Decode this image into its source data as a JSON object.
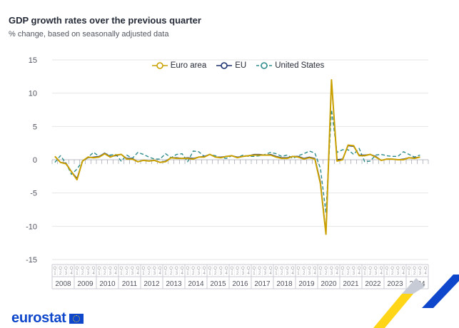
{
  "title": "GDP growth rates over the previous quarter",
  "subtitle": "% change, based on seasonally adjusted data",
  "logo_text": "eurostat",
  "colors": {
    "euro_area": "#c9a000",
    "eu": "#1a2f6e",
    "united_states": "#2e8b8b",
    "grid": "#e6e6e6",
    "brand_blue": "#0e47cb",
    "brand_yellow": "#ffd617"
  },
  "chart_data": {
    "type": "line",
    "title": "GDP growth rates over the previous quarter",
    "subtitle": "% change, based on seasonally adjusted data",
    "ylim": [
      -15,
      15
    ],
    "yticks": [
      15,
      10,
      5,
      0,
      -5,
      -10,
      -15
    ],
    "xlabel": "",
    "ylabel": "",
    "legend_position": "top-center",
    "quarter_labels": [
      "Q1",
      "Q2",
      "Q3",
      "Q4"
    ],
    "years": [
      "2008",
      "2009",
      "2010",
      "2011",
      "2012",
      "2013",
      "2014",
      "2015",
      "2016",
      "2017",
      "2018",
      "2019",
      "2020",
      "2021",
      "2022",
      "2023",
      "2024"
    ],
    "series": [
      {
        "name": "Euro area",
        "style": "solid",
        "values": [
          0.5,
          -0.4,
          -0.6,
          -1.8,
          -3.0,
          -0.2,
          0.4,
          0.3,
          0.4,
          0.9,
          0.4,
          0.7,
          0.8,
          0.1,
          0.1,
          -0.3,
          -0.1,
          -0.2,
          -0.1,
          -0.4,
          -0.3,
          0.3,
          0.2,
          0.2,
          0.2,
          0.1,
          0.4,
          0.4,
          0.8,
          0.4,
          0.3,
          0.5,
          0.6,
          0.3,
          0.5,
          0.6,
          0.7,
          0.7,
          0.7,
          0.7,
          0.4,
          0.2,
          0.2,
          0.5,
          0.4,
          0.1,
          0.3,
          0.1,
          -3.6,
          -11.2,
          12.0,
          -0.2,
          0.0,
          2.2,
          2.1,
          0.6,
          0.6,
          0.8,
          0.4,
          -0.1,
          0.1,
          0.1,
          0.0,
          0.0,
          0.3,
          0.2,
          0.4
        ]
      },
      {
        "name": "EU",
        "style": "solid",
        "values": [
          0.5,
          -0.4,
          -0.5,
          -1.8,
          -2.8,
          -0.2,
          0.3,
          0.4,
          0.5,
          1.0,
          0.5,
          0.6,
          0.8,
          0.2,
          0.2,
          -0.3,
          -0.1,
          -0.2,
          -0.1,
          -0.4,
          -0.2,
          0.3,
          0.3,
          0.2,
          0.3,
          0.2,
          0.4,
          0.5,
          0.8,
          0.4,
          0.4,
          0.5,
          0.6,
          0.4,
          0.5,
          0.6,
          0.8,
          0.8,
          0.7,
          0.8,
          0.5,
          0.3,
          0.3,
          0.5,
          0.5,
          0.2,
          0.4,
          0.2,
          -3.3,
          -11.0,
          11.7,
          0.0,
          0.1,
          2.1,
          2.0,
          0.7,
          0.7,
          0.8,
          0.5,
          -0.1,
          0.1,
          0.1,
          0.0,
          0.1,
          0.3,
          0.3,
          0.4
        ]
      },
      {
        "name": "United States",
        "style": "dashed",
        "values": [
          -0.4,
          0.6,
          -0.5,
          -2.2,
          -1.4,
          -0.2,
          0.4,
          1.1,
          0.5,
          0.9,
          0.7,
          0.8,
          -0.2,
          0.7,
          0.2,
          1.1,
          0.8,
          0.4,
          0.1,
          0.1,
          0.9,
          0.3,
          0.8,
          0.9,
          -0.3,
          1.3,
          1.2,
          0.5,
          0.8,
          0.6,
          0.3,
          0.2,
          0.6,
          0.3,
          0.7,
          0.5,
          0.5,
          0.6,
          0.8,
          1.1,
          0.9,
          0.5,
          0.7,
          0.2,
          0.6,
          0.9,
          1.3,
          1.0,
          -1.3,
          -8.0,
          7.5,
          1.1,
          1.5,
          1.5,
          0.8,
          1.7,
          -0.3,
          -0.2,
          0.7,
          0.8,
          0.6,
          0.5,
          0.5,
          1.2,
          0.8,
          0.4,
          0.7
        ]
      }
    ]
  }
}
